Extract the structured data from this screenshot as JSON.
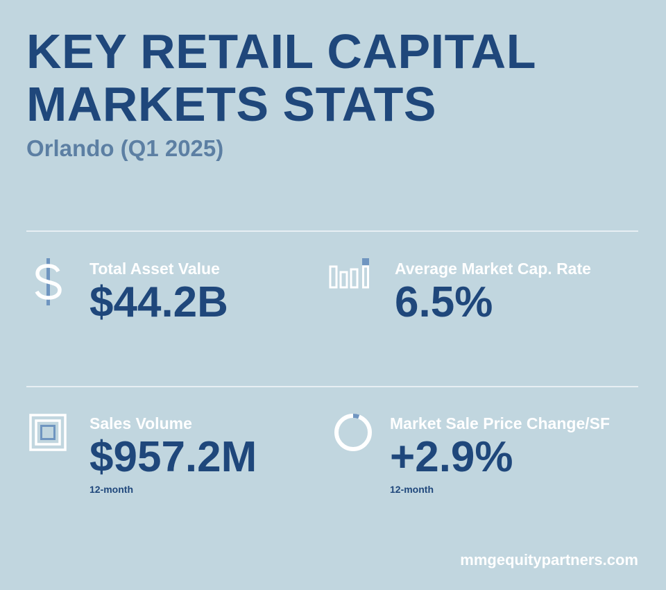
{
  "header": {
    "title_line1": "KEY RETAIL CAPITAL",
    "title_line2": "MARKETS STATS",
    "subtitle": "Orlando (Q1 2025)"
  },
  "stats": [
    {
      "icon": "dollar-sign-icon",
      "label": "Total Asset Value",
      "value": "$44.2B",
      "note": ""
    },
    {
      "icon": "bar-chart-icon",
      "label": "Average Market Cap. Rate",
      "value": "6.5%",
      "note": ""
    },
    {
      "icon": "nested-squares-icon",
      "label": "Sales Volume",
      "value": "$957.2M",
      "note": "12-month"
    },
    {
      "icon": "ring-chart-icon",
      "label": "Market Sale Price Change/SF",
      "value": "+2.9%",
      "note": "12-month"
    }
  ],
  "footer": {
    "website": "mmgequitypartners.com"
  },
  "colors": {
    "background": "#c1d6df",
    "primary": "#1f477b",
    "secondary": "#5c7fa3",
    "accent": "#6f95c0",
    "white": "#ffffff"
  }
}
